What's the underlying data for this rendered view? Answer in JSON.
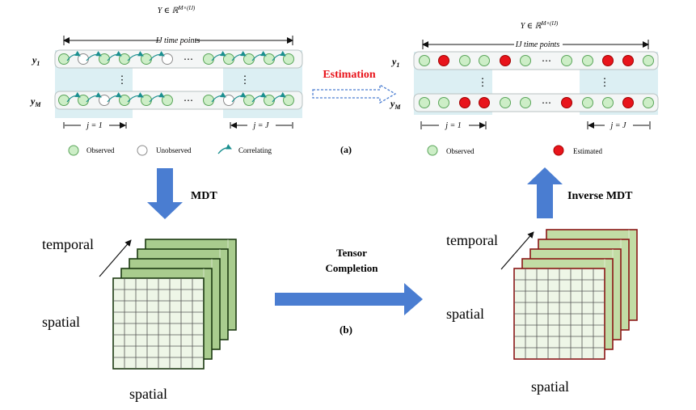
{
  "colors": {
    "observed_fill": "#cdeec7",
    "observed_stroke": "#5aa55a",
    "unobserved_fill": "#ffffff",
    "unobserved_stroke": "#8c8c8c",
    "estimated_fill": "#e8141b",
    "correlating_arrow": "#1a8f8f",
    "highlight": "#dceff3",
    "big_arrow": "#4a7dd1",
    "estimation_text": "#e8141b",
    "green_cube_border": "#1c3a12",
    "green_cube_back": "#a9cc8e",
    "red_cube_border": "#8a1616",
    "red_cube_back": "#c2dca5",
    "cube_front": "#eef6e7"
  },
  "panel_a": {
    "left": {
      "matrix_label": "Y ∈ ℝ",
      "matrix_sup": "M×(IJ)",
      "span_label": "IJ time points",
      "row_top": "y",
      "row_top_sub": "1",
      "row_bottom": "y",
      "row_bottom_sub": "M",
      "block_first": "j = 1",
      "block_last": "j = J",
      "vdots": "⋮",
      "hdots": "⋯",
      "row1_states": [
        "o",
        "u",
        "o",
        "o",
        "o",
        "u",
        "o",
        "o",
        "o",
        "o",
        "o",
        "o"
      ],
      "row2_states": [
        "o",
        "o",
        "u",
        "o",
        "o",
        "o",
        "o",
        "u",
        "o",
        "o",
        "o",
        "o"
      ]
    },
    "right": {
      "matrix_label": "Y ∈ ℝ",
      "matrix_sup": "M×(IJ)",
      "span_label": "IJ time points",
      "row_top": "y",
      "row_top_sub": "1",
      "row_bottom": "y",
      "row_bottom_sub": "M",
      "block_first": "j = 1",
      "block_last": "j = J",
      "vdots": "⋮",
      "hdots": "⋯",
      "row1_states": [
        "o",
        "e",
        "o",
        "o",
        "e",
        "o",
        "o",
        "o",
        "e",
        "e",
        "o",
        "o"
      ],
      "row2_states": [
        "o",
        "o",
        "e",
        "e",
        "o",
        "o",
        "e",
        "o",
        "o",
        "e",
        "o",
        "o"
      ]
    },
    "legend": {
      "observed": "Observed",
      "unobserved": "Unobserved",
      "correlating": "Correlating",
      "estimated": "Estimated"
    },
    "estimation_label": "Estimation",
    "panel_label": "(a)"
  },
  "arrows": {
    "mdt": "MDT",
    "inverse_mdt": "Inverse MDT",
    "tensor_completion_line1": "Tensor",
    "tensor_completion_line2": "Completion"
  },
  "panel_b": {
    "temporal": "temporal",
    "spatial_side": "spatial",
    "spatial_bottom": "spatial",
    "panel_label": "(b)"
  }
}
